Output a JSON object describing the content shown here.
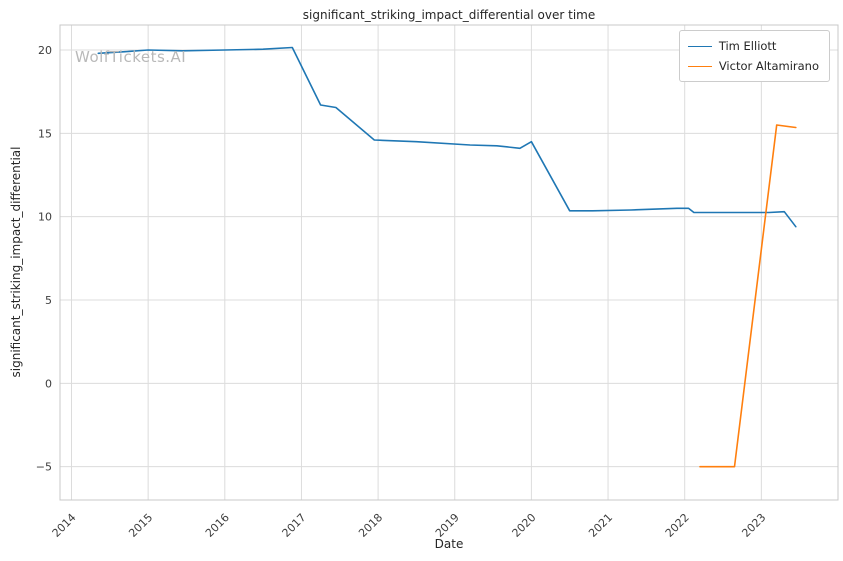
{
  "watermark": "WolfTickets.AI",
  "chart_data": {
    "type": "line",
    "title": "significant_striking_impact_differential over time",
    "xlabel": "Date",
    "ylabel": "significant_striking_impact_differential",
    "xlim": [
      2013.85,
      2024.0
    ],
    "ylim": [
      -7,
      21.5
    ],
    "x_ticks": [
      2014,
      2015,
      2016,
      2017,
      2018,
      2019,
      2020,
      2021,
      2022,
      2023
    ],
    "y_ticks": [
      -5,
      0,
      5,
      10,
      15,
      20
    ],
    "grid": true,
    "legend_position": "upper right",
    "colors": {
      "grid": "#dcdcdc",
      "frame": "#c8c8c8"
    },
    "series": [
      {
        "name": "Tim Elliott",
        "color": "#1f77b4",
        "points": [
          [
            2014.35,
            19.8
          ],
          [
            2014.7,
            19.9
          ],
          [
            2015.0,
            20.0
          ],
          [
            2015.45,
            19.95
          ],
          [
            2016.0,
            20.0
          ],
          [
            2016.5,
            20.05
          ],
          [
            2016.88,
            20.15
          ],
          [
            2017.25,
            16.7
          ],
          [
            2017.45,
            16.55
          ],
          [
            2017.95,
            14.6
          ],
          [
            2018.5,
            14.5
          ],
          [
            2019.2,
            14.3
          ],
          [
            2019.55,
            14.25
          ],
          [
            2019.85,
            14.1
          ],
          [
            2020.0,
            14.5
          ],
          [
            2020.5,
            10.35
          ],
          [
            2020.8,
            10.35
          ],
          [
            2021.3,
            10.4
          ],
          [
            2021.9,
            10.5
          ],
          [
            2022.05,
            10.5
          ],
          [
            2022.12,
            10.25
          ],
          [
            2022.6,
            10.25
          ],
          [
            2023.1,
            10.25
          ],
          [
            2023.3,
            10.3
          ],
          [
            2023.45,
            9.4
          ]
        ]
      },
      {
        "name": "Victor Altamirano",
        "color": "#ff7f0e",
        "points": [
          [
            2022.2,
            -5.0
          ],
          [
            2022.65,
            -5.0
          ],
          [
            2023.2,
            15.5
          ],
          [
            2023.45,
            15.35
          ]
        ]
      }
    ]
  }
}
